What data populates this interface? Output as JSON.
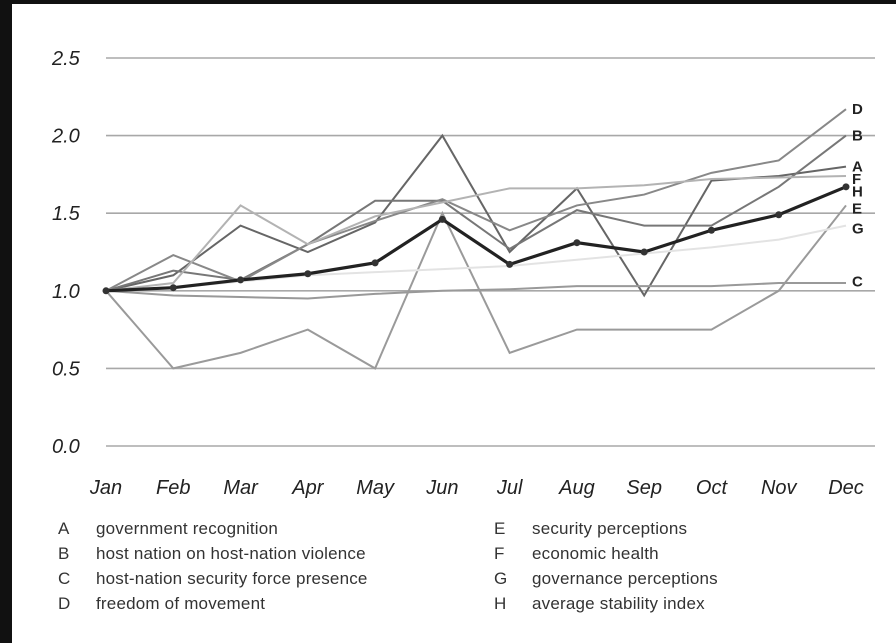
{
  "chart_data": {
    "type": "line",
    "title": "",
    "xlabel": "",
    "ylabel": "",
    "x": [
      "Jan",
      "Feb",
      "Mar",
      "Apr",
      "May",
      "Jun",
      "Jul",
      "Aug",
      "Sep",
      "Oct",
      "Nov",
      "Dec"
    ],
    "ylim": [
      0,
      2.5
    ],
    "yticks": [
      "0.0",
      "0.5",
      "1.0",
      "1.5",
      "2.0",
      "2.5"
    ],
    "grid": "horizontal",
    "legend_position": "bottom",
    "series": [
      {
        "key": "A",
        "name": "government recognition",
        "color": "#666666",
        "values": [
          1.0,
          1.1,
          1.42,
          1.25,
          1.44,
          2.0,
          1.25,
          1.66,
          0.97,
          1.71,
          1.74,
          1.8
        ]
      },
      {
        "key": "B",
        "name": "host nation on host-nation violence",
        "color": "#777777",
        "values": [
          1.0,
          1.13,
          1.07,
          1.3,
          1.58,
          1.58,
          1.27,
          1.52,
          1.42,
          1.42,
          1.67,
          2.0
        ]
      },
      {
        "key": "C",
        "name": "host-nation security force presence",
        "color": "#999999",
        "values": [
          1.0,
          0.97,
          0.96,
          0.95,
          0.98,
          1.0,
          1.01,
          1.03,
          1.03,
          1.03,
          1.05,
          1.05
        ]
      },
      {
        "key": "D",
        "name": "freedom of movement",
        "color": "#888888",
        "values": [
          1.0,
          1.23,
          1.06,
          1.3,
          1.45,
          1.59,
          1.39,
          1.55,
          1.62,
          1.76,
          1.84,
          2.17
        ]
      },
      {
        "key": "E",
        "name": "security perceptions",
        "color": "#9a9a9a",
        "values": [
          1.0,
          0.5,
          0.6,
          0.75,
          0.5,
          1.5,
          0.6,
          0.75,
          0.75,
          0.75,
          1.0,
          1.55
        ]
      },
      {
        "key": "F",
        "name": "economic health",
        "color": "#b3b3b3",
        "values": [
          1.0,
          1.05,
          1.55,
          1.3,
          1.48,
          1.57,
          1.66,
          1.66,
          1.68,
          1.72,
          1.73,
          1.74
        ]
      },
      {
        "key": "G",
        "name": "governance perceptions",
        "color": "#e3e3e3",
        "values": [
          1.0,
          1.02,
          1.06,
          1.1,
          1.12,
          1.14,
          1.16,
          1.2,
          1.24,
          1.28,
          1.33,
          1.42
        ]
      },
      {
        "key": "H",
        "name": "average stability index",
        "color": "#222222",
        "values": [
          1.0,
          1.02,
          1.07,
          1.11,
          1.18,
          1.46,
          1.17,
          1.31,
          1.25,
          1.39,
          1.49,
          1.67
        ]
      }
    ],
    "end_labels": [
      {
        "key": "D",
        "y": 2.17
      },
      {
        "key": "B",
        "y": 2.0
      },
      {
        "key": "A",
        "y": 1.8
      },
      {
        "key": "F",
        "y": 1.72
      },
      {
        "key": "H",
        "y": 1.64
      },
      {
        "key": "E",
        "y": 1.53
      },
      {
        "key": "G",
        "y": 1.4
      },
      {
        "key": "C",
        "y": 1.06
      }
    ],
    "legend_columns": [
      [
        "A",
        "B",
        "C",
        "D"
      ],
      [
        "E",
        "F",
        "G",
        "H"
      ]
    ]
  }
}
